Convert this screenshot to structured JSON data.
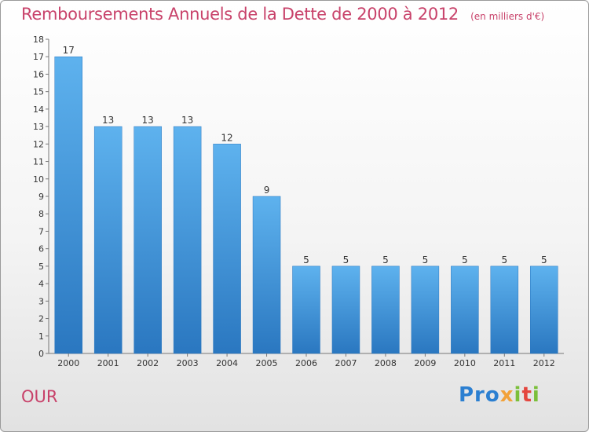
{
  "chart_data": {
    "type": "bar",
    "title": "Remboursements Annuels de la Dette de 2000 à 2012",
    "unit_note": "(en milliers d'€)",
    "categories": [
      "2000",
      "2001",
      "2002",
      "2003",
      "2004",
      "2005",
      "2006",
      "2007",
      "2008",
      "2009",
      "2010",
      "2011",
      "2012"
    ],
    "values": [
      17,
      13,
      13,
      13,
      12,
      9,
      5,
      5,
      5,
      5,
      5,
      5,
      5
    ],
    "ylim": [
      0,
      18
    ],
    "yticks": [
      0,
      1,
      2,
      3,
      4,
      5,
      6,
      7,
      8,
      9,
      10,
      11,
      12,
      13,
      14,
      15,
      16,
      17,
      18
    ],
    "grid": false,
    "legend": "none",
    "bar_color": "#4a9fe0",
    "label_color": "#333333"
  },
  "commune": "OUR",
  "logo": {
    "p1": "Pro",
    "p2": "x",
    "p3": "i",
    "p4": "t",
    "p5": "i"
  },
  "colors": {
    "accent": "#c8426a",
    "background": "#f4f4f4"
  }
}
